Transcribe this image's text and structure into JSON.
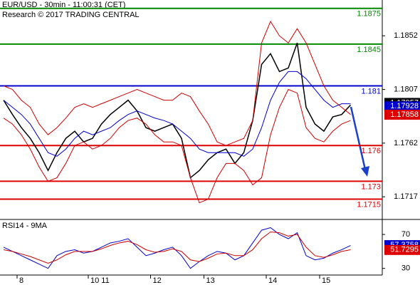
{
  "chart_data": [
    {
      "type": "line",
      "title": "EUR/USD - 30min - 11:00:31 (CET)",
      "subtitle": "Research © 2017 TRADING CENTRAL",
      "categories": [
        null,
        null,
        "8",
        null,
        null,
        null,
        null,
        null,
        null,
        null,
        "10 11",
        null,
        null,
        null,
        null,
        null,
        null,
        "12",
        null,
        null,
        null,
        null,
        null,
        "13",
        null,
        null,
        null,
        null,
        null,
        null,
        "14",
        null,
        null,
        null,
        null,
        null,
        "15",
        null,
        null,
        null
      ],
      "series": [
        {
          "color": "#000000",
          "values": [
            1.1798,
            1.1786,
            1.1775,
            1.1766,
            1.1754,
            1.1739,
            1.1754,
            1.1766,
            1.1772,
            1.1763,
            1.1766,
            1.1778,
            1.1786,
            1.1792,
            1.1798,
            1.1789,
            1.1775,
            1.1772,
            1.1775,
            1.1778,
            1.1766,
            1.1733,
            1.1739,
            1.1748,
            1.1754,
            1.1757,
            1.1745,
            1.1754,
            1.1781,
            1.1828,
            1.1837,
            1.1822,
            1.1825,
            1.1846,
            1.1792,
            1.1778,
            1.1772,
            1.1784,
            1.1786,
            1.1794
          ]
        },
        {
          "color": "#cc0000",
          "values": [
            1.181,
            1.1807,
            1.1798,
            1.1792,
            1.1778,
            1.1769,
            1.1775,
            1.1783,
            1.1792,
            1.1795,
            1.1792,
            1.1795,
            1.1798,
            1.1801,
            1.1804,
            1.1807,
            1.1804,
            1.1801,
            1.1798,
            1.1798,
            1.1804,
            1.1801,
            1.1789,
            1.1778,
            1.1763,
            1.176,
            1.1763,
            1.1766,
            1.1781,
            1.1846,
            1.1864,
            1.1852,
            1.1846,
            1.1858,
            1.1846,
            1.1828,
            1.181,
            1.1798,
            1.1792,
            1.1786
          ]
        },
        {
          "color": "#cc0000",
          "values": [
            1.1783,
            1.1778,
            1.1769,
            1.1757,
            1.1742,
            1.173,
            1.1733,
            1.1745,
            1.176,
            1.1763,
            1.1757,
            1.176,
            1.1766,
            1.1775,
            1.1781,
            1.1783,
            1.1778,
            1.1769,
            1.1763,
            1.1763,
            1.176,
            1.1733,
            1.1712,
            1.1715,
            1.1733,
            1.1745,
            1.1745,
            1.1739,
            1.1727,
            1.1733,
            1.1769,
            1.1792,
            1.1807,
            1.1804,
            1.1775,
            1.1766,
            1.1763,
            1.1772,
            1.1778,
            1.1781
          ]
        },
        {
          "color": "#0000cc",
          "values": [
            1.1798,
            1.1792,
            1.1786,
            1.1778,
            1.1766,
            1.1754,
            1.1751,
            1.1757,
            1.1766,
            1.1772,
            1.1769,
            1.1772,
            1.1775,
            1.1781,
            1.1786,
            1.1789,
            1.1786,
            1.1783,
            1.1781,
            1.1778,
            1.1772,
            1.1766,
            1.1757,
            1.1754,
            1.1754,
            1.1754,
            1.1754,
            1.1751,
            1.1757,
            1.1775,
            1.1798,
            1.1813,
            1.1822,
            1.1822,
            1.1816,
            1.1807,
            1.1798,
            1.1792,
            1.1795,
            1.1795
          ]
        }
      ],
      "ylim": [
        1.1698,
        1.1882
      ],
      "yticks": [
        1.1852,
        1.1807,
        1.1762,
        1.1717
      ],
      "levels": [
        {
          "value": 1.1875,
          "color": "#008800"
        },
        {
          "value": 1.1845,
          "color": "#008800"
        },
        {
          "value": 1.181,
          "color": "#0000cc"
        },
        {
          "value": 1.176,
          "color": "#dd0000"
        },
        {
          "value": 1.173,
          "color": "#dd0000"
        },
        {
          "value": 1.1715,
          "color": "#dd0000"
        }
      ],
      "tags": [
        {
          "value": 1.17957,
          "color": "#000000"
        },
        {
          "value": 1.17928,
          "color": "#0000cc"
        },
        {
          "value": 1.17858,
          "color": "#dd0000"
        }
      ]
    },
    {
      "type": "line",
      "title": "RSI14 - 9MA",
      "series": [
        {
          "color": "#0000cc",
          "values": [
            55,
            50,
            45,
            40,
            35,
            30,
            45,
            50,
            52,
            48,
            50,
            55,
            60,
            62,
            65,
            55,
            45,
            48,
            52,
            55,
            45,
            30,
            38,
            45,
            50,
            48,
            40,
            45,
            60,
            75,
            78,
            70,
            65,
            72,
            45,
            40,
            42,
            48,
            52,
            57
          ]
        },
        {
          "color": "#cc0000",
          "values": [
            52,
            50,
            47,
            44,
            40,
            36,
            40,
            46,
            50,
            50,
            50,
            53,
            57,
            60,
            62,
            58,
            52,
            49,
            50,
            53,
            50,
            40,
            38,
            42,
            47,
            48,
            45,
            45,
            52,
            65,
            73,
            72,
            68,
            70,
            55,
            45,
            43,
            46,
            50,
            52
          ]
        }
      ],
      "ylim": [
        23,
        86
      ],
      "yticks": [
        70,
        30
      ],
      "tags": [
        {
          "value": 57.3758,
          "color": "#0000cc"
        },
        {
          "value": 51.7295,
          "color": "#dd0000"
        }
      ]
    }
  ]
}
